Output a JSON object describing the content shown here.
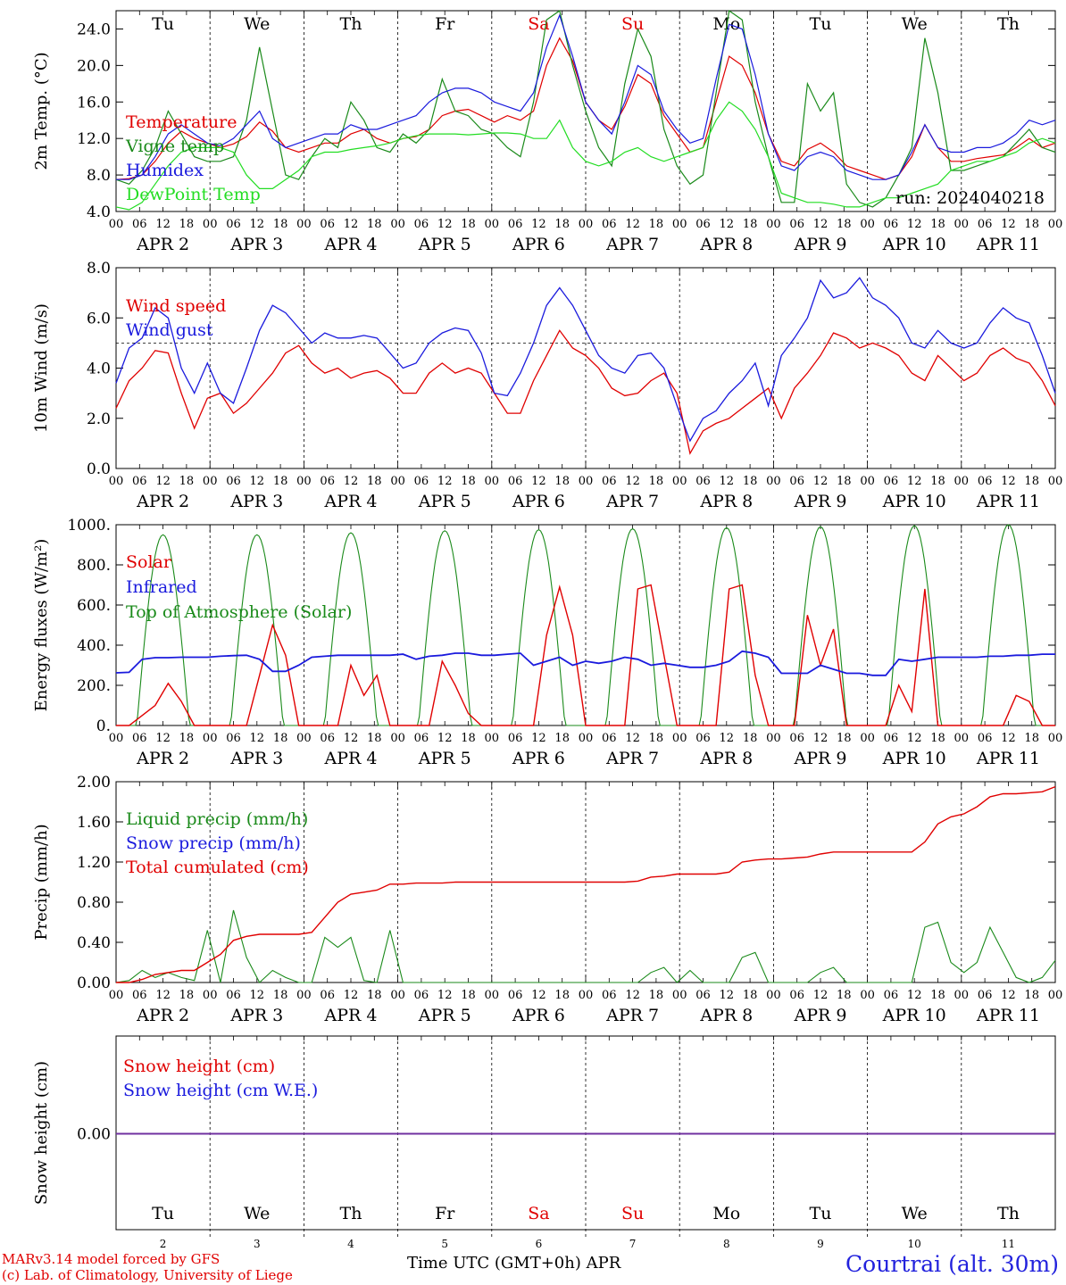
{
  "footer": {
    "model": "MARv3.14 model forced by GFS",
    "lab": "(c) Lab. of Climatology, University of Liege",
    "time_label": "Time UTC (GMT+0h) APR",
    "station": "Courtrai (alt. 30m)"
  },
  "colors": {
    "red": "#e00000",
    "green": "#1a8a1a",
    "blue": "#1a1add",
    "lightgreen": "#22dd22",
    "purple": "#7030a0",
    "weekend": "#e00000"
  },
  "days": {
    "weekday_labels": [
      "Tu",
      "We",
      "Th",
      "Fr",
      "Sa",
      "Su",
      "Mo",
      "Tu",
      "We",
      "Th"
    ],
    "weekend_flags": [
      false,
      false,
      false,
      false,
      true,
      true,
      false,
      false,
      false,
      false
    ],
    "date_labels": [
      "APR  2",
      "APR  3",
      "APR  4",
      "APR  5",
      "APR  6",
      "APR  7",
      "APR  8",
      "APR  9",
      "APR 10",
      "APR 11"
    ],
    "date_numbers": [
      "2",
      "3",
      "4",
      "5",
      "6",
      "7",
      "8",
      "9",
      "10",
      "11"
    ],
    "hour_ticks": [
      "00",
      "06",
      "12",
      "18"
    ],
    "final_tick": "00"
  },
  "chart_data": [
    {
      "type": "line",
      "ylabel": "2m Temp. (°C)",
      "ylim": [
        4,
        26
      ],
      "yticks": [
        "4.0",
        "8.0",
        "12.0",
        "16.0",
        "20.0",
        "24.0"
      ],
      "annotation": "run: 2024040218",
      "x_unit": "hours since 2024-04-02 00 UTC (approx. 3-hourly)",
      "series": [
        {
          "name": "Temperature",
          "color": "red",
          "values": [
            7.5,
            7.6,
            8.0,
            9.5,
            11.5,
            12.8,
            12.0,
            11.5,
            11.0,
            11.4,
            12.2,
            13.8,
            12.8,
            11.0,
            10.5,
            11.0,
            11.5,
            11.5,
            12.5,
            13.0,
            12.0,
            11.5,
            12.0,
            12.2,
            13.0,
            14.5,
            15.0,
            15.2,
            14.5,
            13.8,
            14.5,
            14.0,
            15.0,
            20.0,
            23.0,
            20.5,
            16.0,
            14.0,
            13.0,
            15.5,
            19.0,
            18.0,
            14.5,
            12.5,
            10.5,
            11.0,
            16.0,
            21.0,
            20.0,
            17.0,
            12.5,
            9.5,
            9.0,
            10.8,
            11.5,
            10.5,
            9.0,
            8.5,
            8.0,
            7.5,
            8.0,
            10.0,
            13.5,
            11.0,
            9.5,
            9.5,
            9.8,
            10.0,
            10.2,
            11.0,
            12.0,
            11.0,
            11.5
          ]
        },
        {
          "name": "Vigne temp",
          "color": "green",
          "values": [
            7.5,
            7.0,
            8.5,
            11.0,
            15.0,
            12.5,
            10.0,
            9.5,
            9.5,
            10.0,
            14.0,
            22.0,
            15.0,
            8.0,
            7.5,
            10.0,
            12.0,
            11.0,
            16.0,
            14.0,
            11.0,
            10.5,
            12.5,
            11.5,
            13.0,
            18.5,
            15.0,
            14.5,
            13.0,
            12.5,
            11.0,
            10.0,
            16.0,
            25.0,
            26.0,
            20.0,
            15.0,
            11.0,
            9.0,
            18.0,
            24.0,
            21.0,
            13.0,
            9.0,
            7.0,
            8.0,
            17.0,
            26.0,
            25.0,
            16.0,
            10.0,
            5.0,
            5.0,
            18.0,
            15.0,
            17.0,
            7.0,
            5.0,
            4.5,
            5.5,
            8.0,
            11.0,
            23.0,
            17.0,
            8.5,
            8.5,
            9.0,
            9.5,
            10.0,
            11.5,
            13.0,
            11.0,
            10.5
          ]
        },
        {
          "name": "Humidex",
          "color": "blue",
          "values": [
            7.5,
            7.5,
            8.0,
            10.0,
            12.5,
            13.5,
            12.5,
            11.5,
            11.2,
            12.0,
            13.5,
            15.0,
            12.0,
            11.0,
            11.5,
            12.0,
            12.5,
            12.5,
            13.5,
            13.0,
            13.0,
            13.5,
            14.0,
            14.5,
            16.0,
            17.0,
            17.5,
            17.5,
            17.0,
            16.0,
            15.5,
            15.0,
            17.0,
            22.0,
            25.5,
            21.0,
            16.0,
            14.0,
            12.5,
            16.0,
            20.0,
            19.0,
            15.0,
            13.0,
            11.5,
            12.0,
            18.5,
            24.5,
            24.0,
            19.0,
            12.5,
            9.0,
            8.5,
            10.0,
            10.5,
            10.0,
            8.5,
            8.0,
            7.5,
            7.5,
            8.0,
            10.5,
            13.5,
            11.0,
            10.5,
            10.5,
            11.0,
            11.0,
            11.5,
            12.5,
            14.0,
            13.5,
            14.0
          ]
        },
        {
          "name": "DewPoint Temp",
          "color": "lightgreen",
          "values": [
            4.5,
            4.2,
            5.0,
            7.0,
            9.0,
            10.5,
            11.0,
            11.0,
            11.0,
            10.5,
            8.0,
            6.5,
            6.5,
            7.5,
            8.5,
            10.0,
            10.5,
            10.5,
            10.8,
            11.0,
            11.2,
            11.5,
            12.0,
            12.3,
            12.5,
            12.5,
            12.5,
            12.4,
            12.5,
            12.6,
            12.6,
            12.5,
            12.0,
            12.0,
            14.0,
            11.0,
            9.5,
            9.0,
            9.5,
            10.5,
            11.0,
            10.0,
            9.5,
            10.0,
            10.5,
            11.0,
            14.0,
            16.0,
            15.0,
            13.0,
            10.0,
            6.0,
            5.5,
            5.0,
            5.0,
            4.8,
            4.5,
            4.5,
            5.0,
            5.5,
            5.5,
            6.0,
            6.5,
            7.0,
            8.5,
            9.0,
            9.5,
            9.5,
            10.0,
            10.5,
            11.5,
            12.0,
            11.5
          ]
        }
      ]
    },
    {
      "type": "line",
      "ylabel": "10m Wind (m/s)",
      "ylim": [
        0,
        8
      ],
      "yticks": [
        "0.0",
        "2.0",
        "4.0",
        "6.0",
        "8.0"
      ],
      "reference_line": 5.0,
      "series": [
        {
          "name": "Wind speed",
          "color": "red",
          "values": [
            2.4,
            3.5,
            4.0,
            4.7,
            4.6,
            3.0,
            1.6,
            2.8,
            3.0,
            2.2,
            2.6,
            3.2,
            3.8,
            4.6,
            4.9,
            4.2,
            3.8,
            4.0,
            3.6,
            3.8,
            3.9,
            3.6,
            3.0,
            3.0,
            3.8,
            4.2,
            3.8,
            4.0,
            3.8,
            3.0,
            2.2,
            2.2,
            3.5,
            4.5,
            5.5,
            4.8,
            4.5,
            4.0,
            3.2,
            2.9,
            3.0,
            3.5,
            3.8,
            3.0,
            0.6,
            1.5,
            1.8,
            2.0,
            2.4,
            2.8,
            3.2,
            2.0,
            3.2,
            3.8,
            4.5,
            5.4,
            5.2,
            4.8,
            5.0,
            4.8,
            4.5,
            3.8,
            3.5,
            4.5,
            4.0,
            3.5,
            3.8,
            4.5,
            4.8,
            4.4,
            4.2,
            3.5,
            2.5
          ]
        },
        {
          "name": "Wind gust",
          "color": "blue",
          "values": [
            3.4,
            4.8,
            5.2,
            6.4,
            6.0,
            4.0,
            3.0,
            4.2,
            3.0,
            2.6,
            4.0,
            5.5,
            6.5,
            6.2,
            5.6,
            5.0,
            5.4,
            5.2,
            5.2,
            5.3,
            5.2,
            4.6,
            4.0,
            4.2,
            5.0,
            5.4,
            5.6,
            5.5,
            4.6,
            3.0,
            2.9,
            3.8,
            5.0,
            6.5,
            7.2,
            6.5,
            5.5,
            4.5,
            4.0,
            3.8,
            4.5,
            4.6,
            4.0,
            2.5,
            1.1,
            2.0,
            2.3,
            3.0,
            3.5,
            4.2,
            2.5,
            4.5,
            5.2,
            6.0,
            7.5,
            6.8,
            7.0,
            7.6,
            6.8,
            6.5,
            6.0,
            5.0,
            4.8,
            5.5,
            5.0,
            4.8,
            5.0,
            5.8,
            6.4,
            6.0,
            5.8,
            4.5,
            3.0
          ]
        }
      ]
    },
    {
      "type": "line",
      "ylabel": "Energy fluxes (W/m²)",
      "ylim": [
        0,
        1000
      ],
      "yticks": [
        "0.",
        "200.",
        "400.",
        "600.",
        "800.",
        "1000."
      ],
      "series": [
        {
          "name": "Solar",
          "color": "red",
          "values": [
            0,
            0,
            50,
            100,
            210,
            120,
            0,
            0,
            0,
            0,
            0,
            250,
            500,
            350,
            0,
            0,
            0,
            0,
            300,
            150,
            250,
            0,
            0,
            0,
            0,
            320,
            200,
            60,
            0,
            0,
            0,
            0,
            0,
            450,
            690,
            450,
            0,
            0,
            0,
            0,
            680,
            700,
            350,
            0,
            0,
            0,
            0,
            680,
            700,
            250,
            0,
            0,
            0,
            550,
            300,
            480,
            0,
            0,
            0,
            0,
            200,
            70,
            680,
            0,
            0,
            0,
            0,
            0,
            0,
            150,
            120,
            0,
            0
          ]
        },
        {
          "name": "Infrared",
          "color": "blue",
          "values": [
            262,
            265,
            330,
            338,
            338,
            340,
            340,
            340,
            345,
            348,
            350,
            330,
            270,
            270,
            300,
            340,
            345,
            350,
            350,
            350,
            350,
            350,
            355,
            330,
            345,
            350,
            360,
            360,
            350,
            350,
            355,
            360,
            300,
            320,
            340,
            300,
            320,
            310,
            320,
            340,
            330,
            300,
            310,
            300,
            290,
            290,
            300,
            320,
            370,
            360,
            340,
            260,
            260,
            260,
            300,
            280,
            260,
            260,
            250,
            250,
            330,
            320,
            330,
            340,
            340,
            340,
            340,
            345,
            345,
            350,
            350,
            355,
            355
          ]
        },
        {
          "name": "Top of Atmosphere (Solar)",
          "color": "green",
          "peaks": [
            950,
            950,
            960,
            970,
            975,
            980,
            985,
            990,
            995,
            1000
          ]
        }
      ]
    },
    {
      "type": "line",
      "ylabel": "Precip (mm/h)",
      "ylim": [
        0,
        2.0
      ],
      "yticks": [
        "0.00",
        "0.40",
        "0.80",
        "1.20",
        "1.60",
        "2.00"
      ],
      "series": [
        {
          "name": "Liquid precip (mm/h)",
          "color": "green",
          "values": [
            0,
            0.02,
            0.12,
            0.05,
            0.1,
            0.05,
            0.02,
            0.52,
            0.0,
            0.72,
            0.25,
            0.0,
            0.12,
            0.05,
            0.0,
            0.0,
            0.45,
            0.35,
            0.45,
            0.02,
            0.0,
            0.52,
            0.0,
            0.0,
            0.0,
            0.0,
            0.0,
            0.0,
            0.0,
            0.0,
            0.0,
            0.0,
            0.0,
            0.0,
            0.0,
            0.0,
            0.0,
            0.0,
            0.0,
            0.0,
            0.0,
            0.1,
            0.15,
            0.0,
            0.12,
            0.0,
            0.0,
            0.0,
            0.25,
            0.3,
            0.0,
            0.0,
            0.0,
            0.0,
            0.1,
            0.15,
            0.0,
            0.0,
            0.0,
            0.0,
            0.0,
            0.0,
            0.55,
            0.6,
            0.2,
            0.1,
            0.2,
            0.55,
            0.3,
            0.05,
            0.0,
            0.05,
            0.22
          ]
        },
        {
          "name": "Snow precip (mm/h)",
          "color": "blue",
          "values": []
        },
        {
          "name": "Total cumulated (cm)",
          "color": "red",
          "values": [
            0,
            0,
            0.03,
            0.08,
            0.1,
            0.12,
            0.12,
            0.2,
            0.28,
            0.42,
            0.46,
            0.48,
            0.48,
            0.48,
            0.48,
            0.5,
            0.65,
            0.8,
            0.88,
            0.9,
            0.92,
            0.98,
            0.98,
            0.99,
            0.99,
            0.99,
            1.0,
            1.0,
            1.0,
            1.0,
            1.0,
            1.0,
            1.0,
            1.0,
            1.0,
            1.0,
            1.0,
            1.0,
            1.0,
            1.0,
            1.01,
            1.05,
            1.06,
            1.08,
            1.08,
            1.08,
            1.08,
            1.1,
            1.2,
            1.22,
            1.23,
            1.23,
            1.24,
            1.25,
            1.28,
            1.3,
            1.3,
            1.3,
            1.3,
            1.3,
            1.3,
            1.3,
            1.4,
            1.58,
            1.65,
            1.68,
            1.75,
            1.85,
            1.88,
            1.88,
            1.89,
            1.9,
            1.95
          ]
        }
      ]
    },
    {
      "type": "line",
      "ylabel": "Snow height (cm)",
      "yticks": [
        "0.00"
      ],
      "series": [
        {
          "name": "Snow height (cm)",
          "color": "red",
          "values": [
            0,
            0
          ]
        },
        {
          "name": "Snow height (cm W.E.)",
          "color": "blue",
          "values": [
            0,
            0
          ]
        }
      ]
    }
  ]
}
